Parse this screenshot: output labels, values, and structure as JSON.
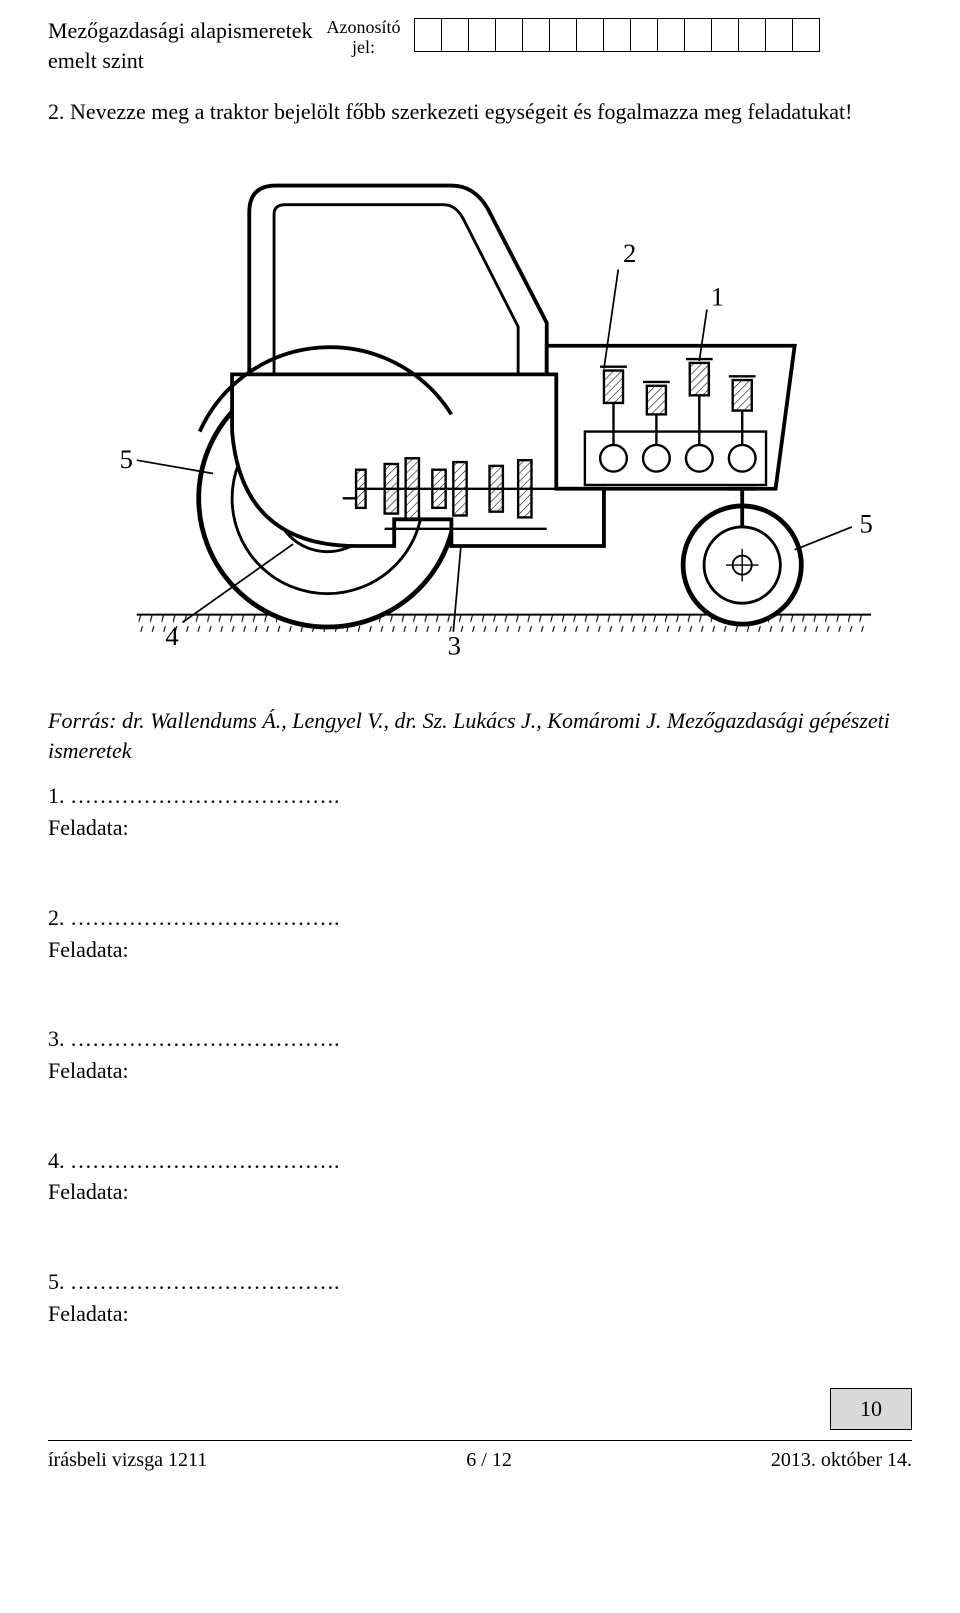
{
  "header": {
    "subject": "Mezőgazdasági alapismeretek",
    "level": "emelt szint",
    "id_label_line1": "Azonosító",
    "id_label_line2": "jel:",
    "id_cell_count": 15
  },
  "question": {
    "text": "2. Nevezze meg a traktor bejelölt főbb szerkezeti egységeit és fogalmazza meg feladatukat!"
  },
  "figure": {
    "type": "diagram",
    "description": "tractor schematic with numbered callouts",
    "callouts": [
      "1",
      "2",
      "3",
      "4",
      "5",
      "5"
    ],
    "stroke_color": "#000000",
    "hatch_color": "#000000",
    "background_color": "#ffffff",
    "line_width_main": 3,
    "line_width_thin": 1.5,
    "font_size_callout": 26
  },
  "source": {
    "text": "Forrás: dr. Wallendums Á., Lengyel V., dr. Sz. Lukács J., Komáromi J. Mezőgazdasági gépészeti ismeretek"
  },
  "answers": [
    {
      "num": "1.",
      "dots": " ……………………………….",
      "label": "Feladata:"
    },
    {
      "num": "2.",
      "dots": " ……………………………….",
      "label": "Feladata:"
    },
    {
      "num": "3.",
      "dots": " ……………………………….",
      "label": "Feladata:"
    },
    {
      "num": "4.",
      "dots": " ……………………………….",
      "label": "Feladata:"
    },
    {
      "num": "5.",
      "dots": " ……………………………….",
      "label": "Feladata:"
    }
  ],
  "points": {
    "value": "10",
    "box_bg": "#d9d9d9",
    "box_border": "#000000"
  },
  "footer": {
    "left": "írásbeli vizsga 1211",
    "center": "6 / 12",
    "right": "2013. október 14."
  }
}
